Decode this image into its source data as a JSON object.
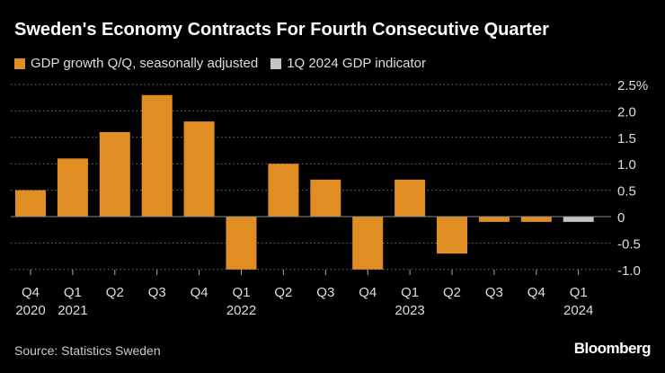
{
  "chart_data": {
    "type": "bar",
    "title": "Sweden's Economy Contracts For Fourth Consecutive Quarter",
    "legend": [
      {
        "name": "GDP growth Q/Q, seasonally adjusted",
        "color": "#e08e24"
      },
      {
        "name": "1Q 2024 GDP indicator",
        "color": "#c4c4c4"
      }
    ],
    "categories": [
      [
        "Q4",
        "2020"
      ],
      [
        "Q1",
        "2021"
      ],
      [
        "Q2",
        ""
      ],
      [
        "Q3",
        ""
      ],
      [
        "Q4",
        ""
      ],
      [
        "Q1",
        "2022"
      ],
      [
        "Q2",
        ""
      ],
      [
        "Q3",
        ""
      ],
      [
        "Q4",
        ""
      ],
      [
        "Q1",
        "2023"
      ],
      [
        "Q2",
        ""
      ],
      [
        "Q3",
        ""
      ],
      [
        "Q4",
        ""
      ],
      [
        "Q1",
        "2024"
      ]
    ],
    "values": [
      0.5,
      1.1,
      1.6,
      2.3,
      1.8,
      -1.0,
      1.0,
      0.7,
      -1.0,
      0.7,
      -0.7,
      -0.1,
      -0.1,
      -0.1
    ],
    "series_index": [
      0,
      0,
      0,
      0,
      0,
      0,
      0,
      0,
      0,
      0,
      0,
      0,
      0,
      1
    ],
    "yticks": [
      "2.5%",
      "2.0",
      "1.5",
      "1.0",
      "0.5",
      "0",
      "-0.5",
      "-1.0"
    ],
    "ytick_values": [
      2.5,
      2.0,
      1.5,
      1.0,
      0.5,
      0,
      -0.5,
      -1.0
    ],
    "ylim": [
      -1.0,
      2.5
    ],
    "grid": true,
    "legend_placement": "top-left"
  },
  "source": "Source: Statistics Sweden",
  "logo": "Bloomberg"
}
